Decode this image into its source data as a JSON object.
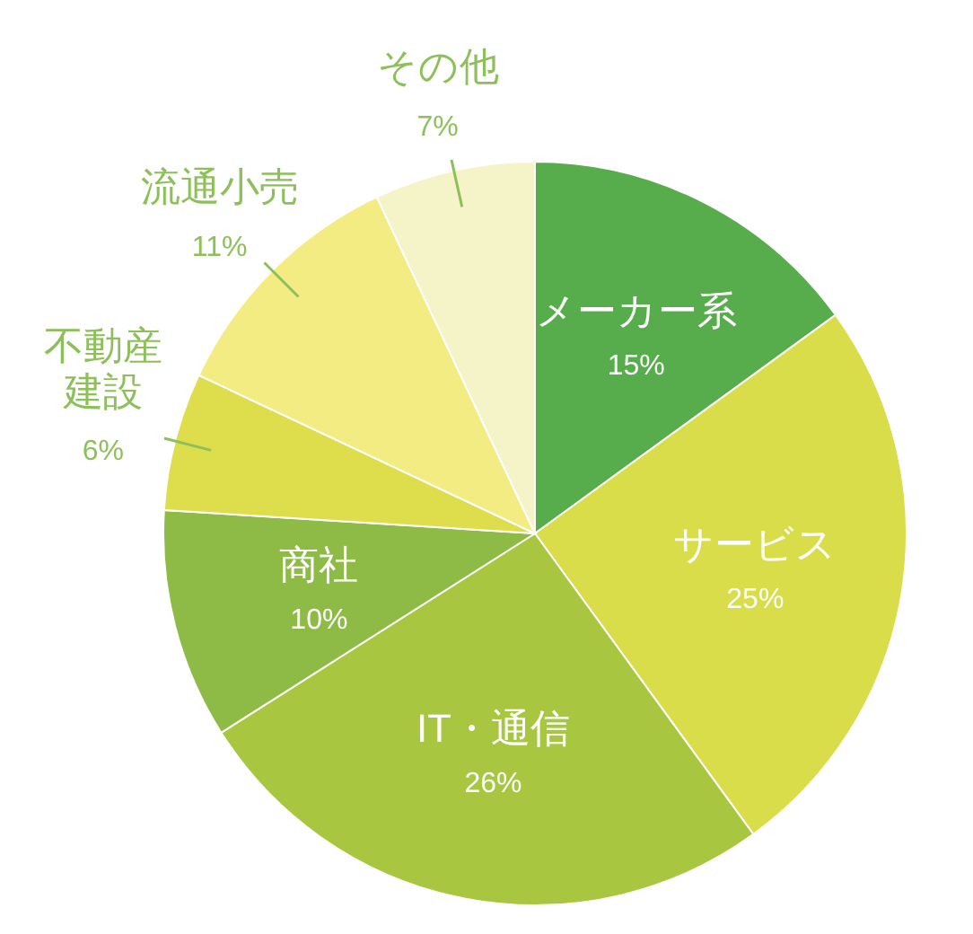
{
  "chart_data": {
    "type": "pie",
    "categories": [
      "メーカー系",
      "サービス",
      "IT・通信",
      "商社",
      "不動産建設",
      "流通小売",
      "その他"
    ],
    "values": [
      15,
      25,
      26,
      10,
      6,
      11,
      7
    ],
    "colors": [
      "#57ad4b",
      "#d9dd4a",
      "#a8c640",
      "#8dbb45",
      "#dede4c",
      "#f3ec82",
      "#f5f3c8"
    ],
    "value_labels": [
      "15%",
      "25%",
      "26%",
      "10%",
      "6%",
      "11%",
      "7%"
    ]
  }
}
